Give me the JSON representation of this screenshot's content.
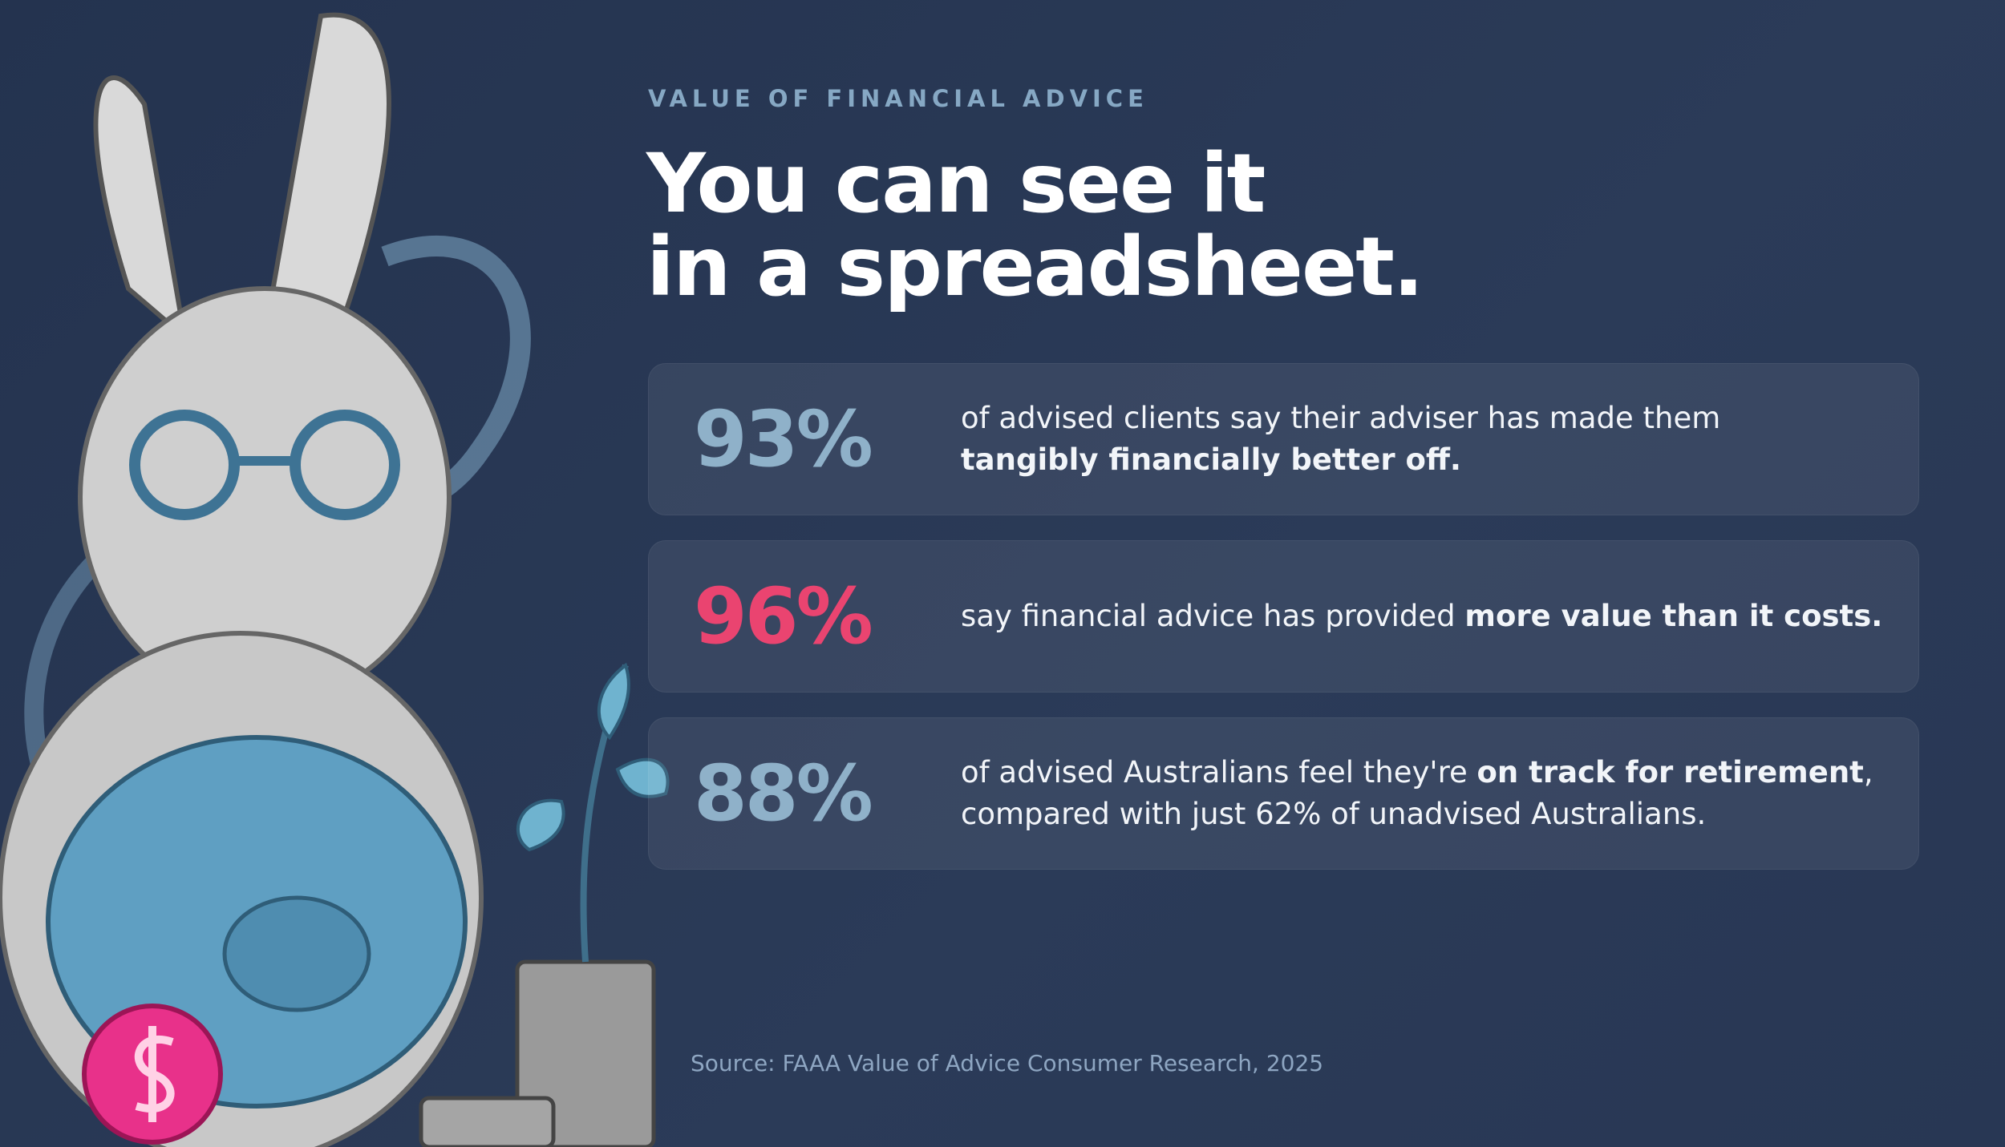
{
  "eyebrow": "VALUE OF FINANCIAL ADVICE",
  "title": {
    "lines": [
      "You can see it",
      "in a spreadsheet."
    ]
  },
  "stats": [
    {
      "figure": "93%",
      "color": "#8fb1c9",
      "lines": [
        [
          {
            "text": "of advised clients say their adviser has made them",
            "bold": false
          }
        ],
        [
          {
            "text": "tangibly financially better off.",
            "bold": true
          }
        ]
      ]
    },
    {
      "figure": "96%",
      "color": "#ea4470",
      "lines": [
        [
          {
            "text": "say financial advice has provided ",
            "bold": false
          },
          {
            "text": "more value than it costs.",
            "bold": true
          }
        ]
      ]
    },
    {
      "figure": "88%",
      "color": "#8fb1c9",
      "lines": [
        [
          {
            "text": "of advised Australians feel they're ",
            "bold": false
          },
          {
            "text": "on track for retirement",
            "bold": true
          },
          {
            "text": ",",
            "bold": false
          }
        ],
        [
          {
            "text": "compared with just 62% of unadvised Australians.",
            "bold": false
          }
        ]
      ]
    }
  ],
  "source": "Source: FAAA Value of Advice Consumer Research, 2025"
}
